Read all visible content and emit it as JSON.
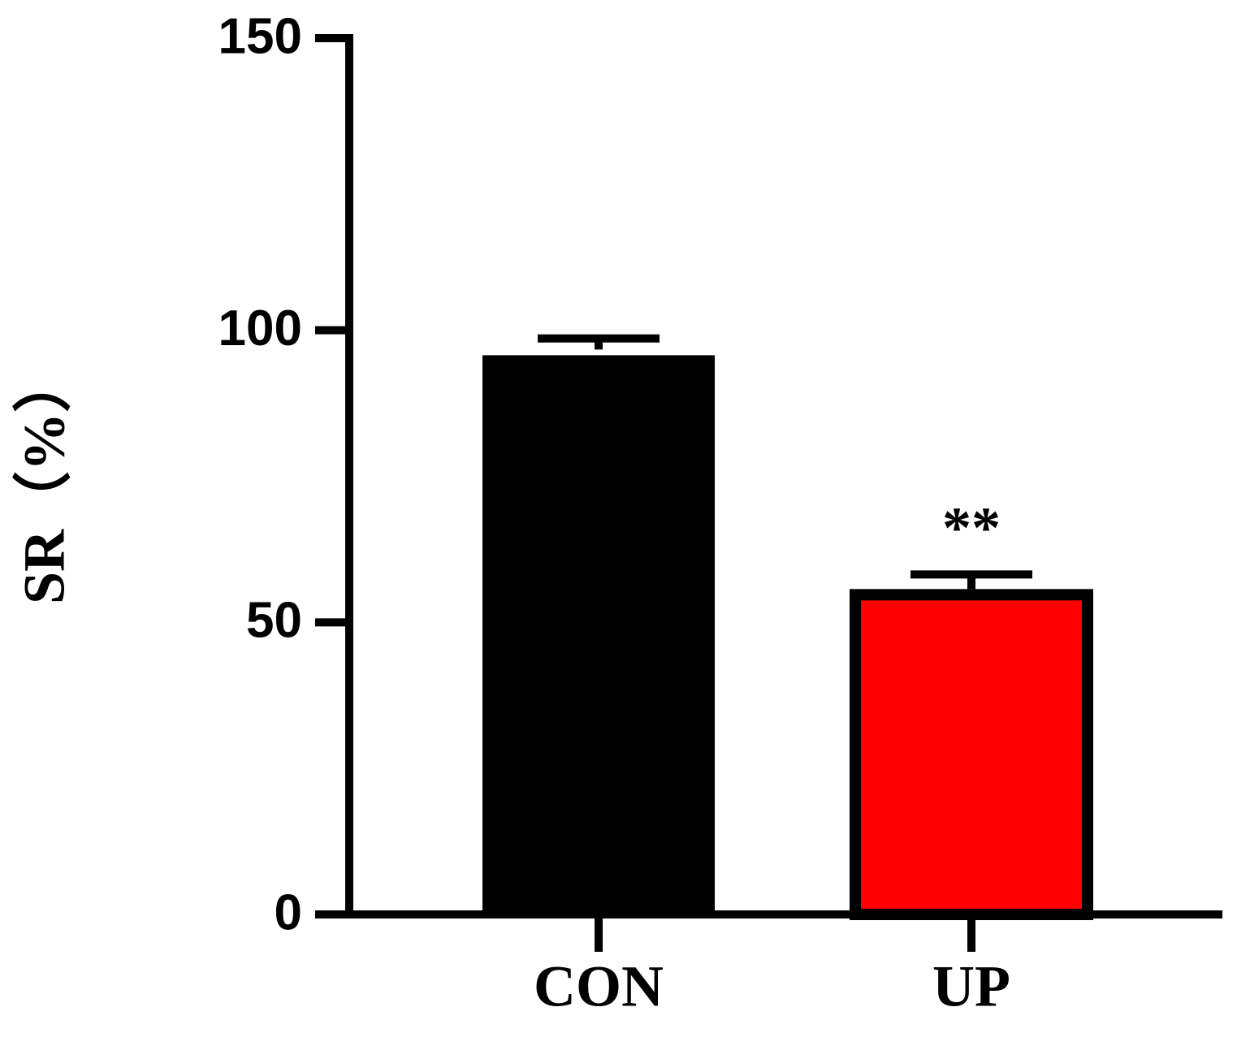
{
  "chart_data": {
    "type": "bar",
    "y_label": "SR（%）",
    "categories": [
      "CON",
      "UP"
    ],
    "values": [
      96.7,
      55.7
    ],
    "errors": [
      1.9,
      2.5
    ],
    "colors": [
      "#000000",
      "#ff0000"
    ],
    "annotation": "**",
    "ylim": [
      0,
      150
    ],
    "yticks": [
      0,
      50,
      100,
      150
    ],
    "grid": false
  }
}
